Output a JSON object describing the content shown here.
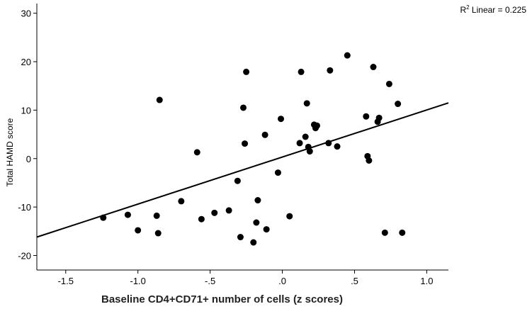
{
  "chart_data": {
    "type": "scatter",
    "title": "",
    "xlabel": "Baseline CD4+CD71+ number of cells (z scores)",
    "ylabel": "Total HAMD score",
    "xlim": [
      -1.7,
      1.15
    ],
    "ylim": [
      -23,
      32
    ],
    "xticks": [
      -1.5,
      -1.0,
      -0.5,
      0.0,
      0.5,
      1.0
    ],
    "xtick_labels": [
      "-1.5",
      "-1.0",
      "-.5",
      ".0",
      ".5",
      "1.0"
    ],
    "yticks": [
      -20,
      -10,
      0,
      10,
      20,
      30
    ],
    "ytick_labels": [
      "-20",
      "-10",
      "0",
      "10",
      "20",
      "30"
    ],
    "annotation": {
      "prefix": "R",
      "superscript": "2",
      "text": " Linear = 0.225"
    },
    "fit_line": {
      "type": "linear",
      "x": [
        -1.7,
        1.15
      ],
      "y": [
        -16.2,
        11.5
      ]
    },
    "points": [
      {
        "x": -1.24,
        "y": -12.2
      },
      {
        "x": -1.07,
        "y": -11.6
      },
      {
        "x": -1.0,
        "y": -14.8
      },
      {
        "x": -0.87,
        "y": -11.8
      },
      {
        "x": -0.86,
        "y": -15.4
      },
      {
        "x": -0.85,
        "y": 12.1
      },
      {
        "x": -0.7,
        "y": -8.8
      },
      {
        "x": -0.59,
        "y": 1.3
      },
      {
        "x": -0.56,
        "y": -12.5
      },
      {
        "x": -0.47,
        "y": -11.2
      },
      {
        "x": -0.37,
        "y": -10.7
      },
      {
        "x": -0.31,
        "y": -4.6
      },
      {
        "x": -0.29,
        "y": -16.2
      },
      {
        "x": -0.27,
        "y": 10.5
      },
      {
        "x": -0.26,
        "y": 3.1
      },
      {
        "x": -0.25,
        "y": 17.9
      },
      {
        "x": -0.2,
        "y": -17.3
      },
      {
        "x": -0.18,
        "y": -13.2
      },
      {
        "x": -0.17,
        "y": -8.6
      },
      {
        "x": -0.12,
        "y": 4.9
      },
      {
        "x": -0.11,
        "y": -14.6
      },
      {
        "x": -0.03,
        "y": -2.9
      },
      {
        "x": -0.01,
        "y": 8.2
      },
      {
        "x": 0.05,
        "y": -11.9
      },
      {
        "x": 0.12,
        "y": 3.2
      },
      {
        "x": 0.13,
        "y": 17.9
      },
      {
        "x": 0.16,
        "y": 4.5
      },
      {
        "x": 0.17,
        "y": 11.4
      },
      {
        "x": 0.18,
        "y": 2.4
      },
      {
        "x": 0.19,
        "y": 1.5
      },
      {
        "x": 0.22,
        "y": 7.0
      },
      {
        "x": 0.23,
        "y": 6.3
      },
      {
        "x": 0.24,
        "y": 6.8
      },
      {
        "x": 0.32,
        "y": 3.2
      },
      {
        "x": 0.33,
        "y": 18.2
      },
      {
        "x": 0.38,
        "y": 2.5
      },
      {
        "x": 0.45,
        "y": 21.3
      },
      {
        "x": 0.58,
        "y": 8.7
      },
      {
        "x": 0.59,
        "y": 0.5
      },
      {
        "x": 0.6,
        "y": -0.4
      },
      {
        "x": 0.63,
        "y": 18.9
      },
      {
        "x": 0.66,
        "y": 7.6
      },
      {
        "x": 0.67,
        "y": 8.4
      },
      {
        "x": 0.71,
        "y": -15.3
      },
      {
        "x": 0.74,
        "y": 15.4
      },
      {
        "x": 0.8,
        "y": 11.3
      },
      {
        "x": 0.83,
        "y": -15.3
      }
    ]
  }
}
